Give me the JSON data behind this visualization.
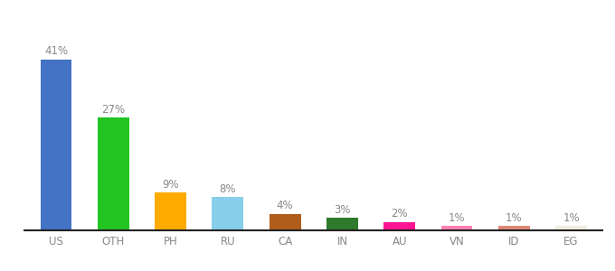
{
  "categories": [
    "US",
    "OTH",
    "PH",
    "RU",
    "CA",
    "IN",
    "AU",
    "VN",
    "ID",
    "EG"
  ],
  "values": [
    41,
    27,
    9,
    8,
    4,
    3,
    2,
    1,
    1,
    1
  ],
  "bar_colors": [
    "#4472c4",
    "#21c421",
    "#ffaa00",
    "#87ceeb",
    "#b05c1a",
    "#2d7a2d",
    "#ff1493",
    "#ff80b0",
    "#e08878",
    "#f0ede0"
  ],
  "background_color": "#ffffff",
  "ylim": [
    0,
    50
  ],
  "label_fontsize": 8.5,
  "tick_fontsize": 8.5,
  "bar_width": 0.55
}
